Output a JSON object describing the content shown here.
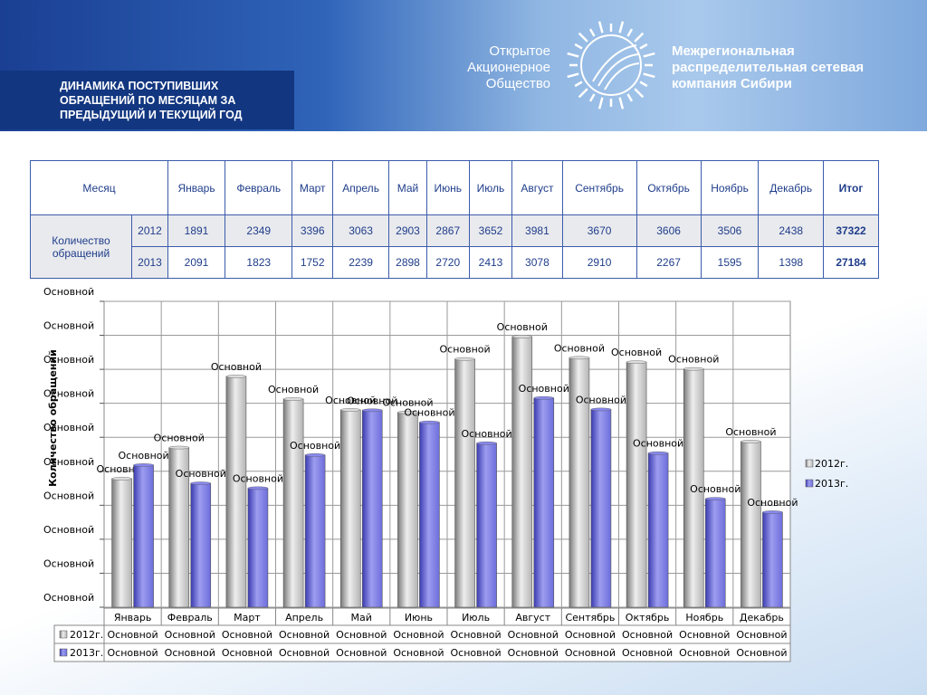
{
  "header": {
    "title": "ДИНАМИКА ПОСТУПИВШИХ ОБРАЩЕНИЙ ПО МЕСЯЦАМ ЗА ПРЕДЫДУЩИЙ И ТЕКУЩИЙ ГОД",
    "company_left": [
      "Открытое",
      "Акционерное",
      "Общество"
    ],
    "company_right": [
      "Межрегиональная",
      "распределительная сетевая",
      "компания Сибири"
    ]
  },
  "table": {
    "month_label": "Месяц",
    "months": [
      "Январь",
      "Февраль",
      "Март",
      "Апрель",
      "Май",
      "Июнь",
      "Июль",
      "Август",
      "Сентябрь",
      "Октябрь",
      "Ноябрь",
      "Декабрь"
    ],
    "total_label": "Итог",
    "row_label": "Количество обращений",
    "rows": [
      {
        "year": "2012",
        "values": [
          "1891",
          "2349",
          "3396",
          "3063",
          "2903",
          "2867",
          "3652",
          "3981",
          "3670",
          "3606",
          "3506",
          "2438"
        ],
        "total": "37322"
      },
      {
        "year": "2013",
        "values": [
          "2091",
          "1823",
          "1752",
          "2239",
          "2898",
          "2720",
          "2413",
          "3078",
          "2910",
          "2267",
          "1595",
          "1398"
        ],
        "total": "27184"
      }
    ]
  },
  "chart_data": {
    "type": "bar",
    "categories": [
      "Январь",
      "Февраль",
      "Март",
      "Апрель",
      "Май",
      "Июнь",
      "Июль",
      "Август",
      "Сентябрь",
      "Октябрь",
      "Ноябрь",
      "Декабрь"
    ],
    "series": [
      {
        "name": "2012г.",
        "values": [
          1891,
          2349,
          3396,
          3063,
          2903,
          2867,
          3652,
          3981,
          3670,
          3606,
          3506,
          2438
        ],
        "color": "#b4b4b4"
      },
      {
        "name": "2013г.",
        "values": [
          2091,
          1823,
          1752,
          2239,
          2898,
          2720,
          2413,
          3078,
          2910,
          2267,
          1595,
          1398
        ],
        "color": "#6d6ddc"
      }
    ],
    "ylabel": "Количество обращений",
    "tick_label": "Основной",
    "y_tick_count": 10,
    "ylim": [
      0,
      4500
    ],
    "grid": true,
    "legend": "right",
    "data_table": true
  }
}
